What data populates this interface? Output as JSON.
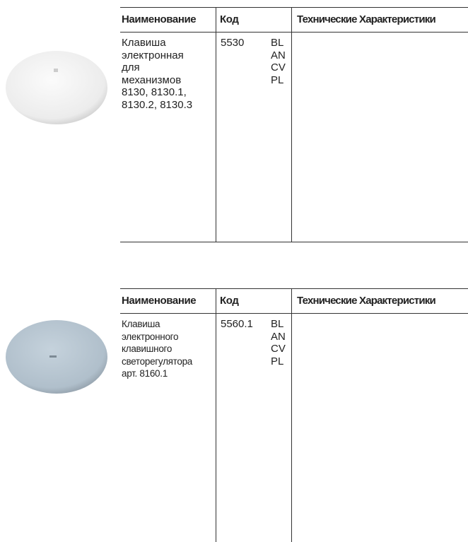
{
  "tables": [
    {
      "header": [
        "Наименование",
        "Код",
        "Технические Характеристики"
      ],
      "name_lines": [
        "Клавиша",
        "электронная",
        "для",
        "механизмов",
        "8130, 8130.1,",
        "8130.2, 8130.3"
      ],
      "code": "5530",
      "variants": [
        "BL",
        "AN",
        "CV",
        "PL"
      ]
    },
    {
      "header": [
        "Наименование",
        "Код",
        "Технические Характеристики"
      ],
      "name_lines": [
        "Клавиша",
        "электронного",
        "клавишного",
        "светорегулятора",
        "арт. 8160.1"
      ],
      "code": "5560.1",
      "variants": [
        "BL",
        "AN",
        "CV",
        "PL"
      ]
    }
  ]
}
